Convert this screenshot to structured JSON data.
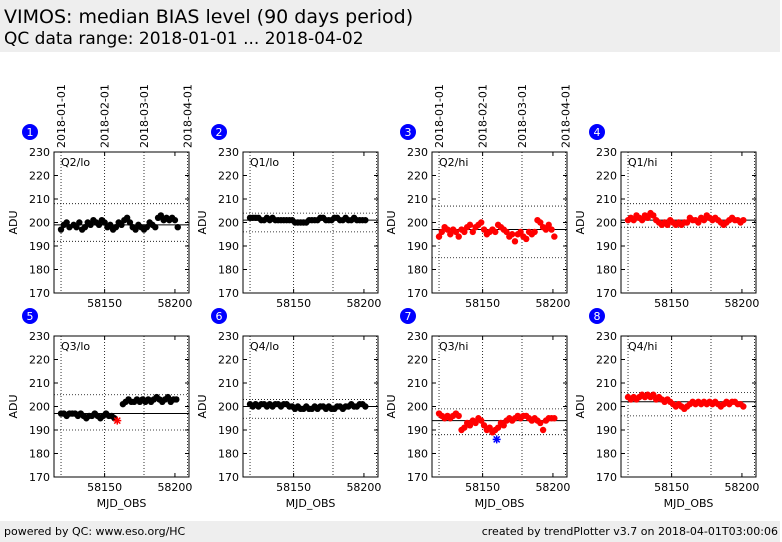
{
  "header": {
    "title": "VIMOS: median BIAS level (90 days period)",
    "subtitle": "QC data range: 2018-01-01 ... 2018-04-02"
  },
  "footer": {
    "left": "powered by QC: www.eso.org/HC",
    "right": "created by trendPlotter v3.7 on 2018-04-01T03:00:06"
  },
  "colors": {
    "black_series": "#000000",
    "red_series": "#ff0000",
    "outlier": "#0000ff",
    "badge": "#0000ff"
  },
  "axis_common": {
    "xlabel": "MJD_OBS",
    "ylabel": "ADU",
    "xlim": [
      58114,
      58210
    ],
    "ylim": [
      170,
      230
    ],
    "xticks": [
      58150,
      58200
    ],
    "yticks": [
      170,
      180,
      190,
      200,
      210,
      220,
      230
    ],
    "date_labels": [
      "2018-01-01",
      "2018-02-01",
      "2018-03-01",
      "2018-04-01"
    ],
    "date_mjd": [
      58119,
      58150,
      58178,
      58209
    ]
  },
  "chart_data": [
    {
      "type": "scatter",
      "badge": "1",
      "label": "Q2/lo",
      "color": "black",
      "median": 199,
      "limits": [
        192,
        208
      ],
      "show_dates": true,
      "x": [
        58119,
        58121,
        58123,
        58125,
        58128,
        58130,
        58132,
        58134,
        58136,
        58138,
        58140,
        58142,
        58144,
        58146,
        58148,
        58150,
        58152,
        58154,
        58156,
        58158,
        58160,
        58162,
        58164,
        58166,
        58168,
        58170,
        58172,
        58174,
        58176,
        58178,
        58180,
        58182,
        58184,
        58186,
        58188,
        58190,
        58192,
        58194,
        58196,
        58198,
        58200,
        58202
      ],
      "y": [
        197,
        199,
        200,
        198,
        199,
        198,
        200,
        197,
        198,
        200,
        199,
        201,
        200,
        199,
        201,
        200,
        198,
        199,
        197,
        198,
        200,
        199,
        201,
        202,
        200,
        198,
        197,
        199,
        198,
        197,
        198,
        200,
        199,
        198,
        202,
        203,
        201,
        202,
        201,
        202,
        201,
        198
      ]
    },
    {
      "type": "scatter",
      "badge": "2",
      "label": "Q1/lo",
      "color": "black",
      "median": 201,
      "limits": [
        196,
        204
      ],
      "show_dates": false,
      "x": [
        58119,
        58121,
        58123,
        58125,
        58127,
        58129,
        58131,
        58133,
        58135,
        58137,
        58139,
        58141,
        58143,
        58145,
        58147,
        58149,
        58151,
        58153,
        58155,
        58157,
        58159,
        58161,
        58163,
        58165,
        58167,
        58169,
        58171,
        58173,
        58175,
        58177,
        58179,
        58181,
        58183,
        58185,
        58187,
        58189,
        58191,
        58193,
        58195,
        58197,
        58199,
        58201
      ],
      "y": [
        202,
        202,
        202,
        202,
        201,
        201,
        202,
        201,
        202,
        201,
        201,
        201,
        201,
        201,
        201,
        201,
        200,
        200,
        200,
        200,
        200,
        201,
        201,
        201,
        201,
        202,
        202,
        201,
        201,
        201,
        202,
        202,
        201,
        201,
        202,
        201,
        201,
        202,
        201,
        201,
        201,
        201
      ]
    },
    {
      "type": "scatter",
      "badge": "3",
      "label": "Q2/hi",
      "color": "red",
      "median": 197,
      "limits": [
        185,
        207
      ],
      "show_dates": true,
      "x": [
        58119,
        58121,
        58123,
        58125,
        58127,
        58129,
        58131,
        58133,
        58135,
        58137,
        58139,
        58141,
        58143,
        58145,
        58147,
        58149,
        58151,
        58153,
        58155,
        58157,
        58159,
        58161,
        58163,
        58165,
        58167,
        58169,
        58171,
        58173,
        58175,
        58177,
        58179,
        58181,
        58183,
        58185,
        58187,
        58189,
        58191,
        58193,
        58195,
        58197,
        58199,
        58201
      ],
      "y": [
        194,
        196,
        198,
        197,
        195,
        197,
        196,
        194,
        197,
        196,
        198,
        199,
        196,
        198,
        199,
        200,
        197,
        195,
        196,
        197,
        196,
        199,
        198,
        197,
        196,
        194,
        195,
        192,
        195,
        196,
        194,
        193,
        196,
        195,
        196,
        201,
        200,
        198,
        197,
        199,
        197,
        194
      ]
    },
    {
      "type": "scatter",
      "badge": "4",
      "label": "Q1/hi",
      "color": "red",
      "median": 201,
      "limits": [
        198,
        208
      ],
      "show_dates": false,
      "x": [
        58119,
        58121,
        58123,
        58125,
        58127,
        58129,
        58131,
        58133,
        58135,
        58137,
        58139,
        58141,
        58143,
        58145,
        58147,
        58149,
        58151,
        58153,
        58155,
        58157,
        58159,
        58161,
        58163,
        58165,
        58167,
        58169,
        58171,
        58173,
        58175,
        58177,
        58179,
        58181,
        58183,
        58185,
        58187,
        58189,
        58191,
        58193,
        58195,
        58197,
        58199,
        58201
      ],
      "y": [
        201,
        202,
        201,
        203,
        202,
        201,
        203,
        202,
        204,
        203,
        201,
        200,
        199,
        200,
        199,
        201,
        200,
        199,
        200,
        199,
        200,
        200,
        202,
        201,
        201,
        200,
        202,
        201,
        203,
        202,
        201,
        202,
        201,
        200,
        199,
        200,
        201,
        202,
        201,
        201,
        200,
        201
      ]
    },
    {
      "type": "scatter",
      "badge": "5",
      "label": "Q3/lo",
      "color": "black",
      "median": 197,
      "limits": [
        190,
        205
      ],
      "show_dates": false,
      "x": [
        58119,
        58121,
        58123,
        58125,
        58127,
        58129,
        58131,
        58133,
        58135,
        58137,
        58139,
        58141,
        58143,
        58145,
        58147,
        58149,
        58151,
        58153,
        58155,
        58157,
        58163,
        58165,
        58167,
        58169,
        58171,
        58173,
        58175,
        58177,
        58179,
        58181,
        58183,
        58185,
        58187,
        58189,
        58191,
        58193,
        58195,
        58197,
        58199,
        58201
      ],
      "y": [
        197,
        197,
        196,
        197,
        197,
        197,
        196,
        197,
        196,
        195,
        196,
        196,
        197,
        196,
        195,
        196,
        197,
        196,
        196,
        195,
        201,
        202,
        203,
        202,
        202,
        203,
        202,
        203,
        202,
        203,
        202,
        203,
        204,
        203,
        202,
        203,
        204,
        202,
        203,
        203
      ]
    },
    {
      "type": "scatter",
      "badge": "6",
      "label": "Q4/lo",
      "color": "black",
      "median": 200,
      "limits": [
        195,
        203
      ],
      "show_dates": false,
      "x": [
        58119,
        58121,
        58123,
        58125,
        58127,
        58129,
        58131,
        58133,
        58135,
        58137,
        58139,
        58141,
        58143,
        58145,
        58147,
        58149,
        58151,
        58153,
        58155,
        58157,
        58159,
        58161,
        58163,
        58165,
        58167,
        58169,
        58171,
        58173,
        58175,
        58177,
        58179,
        58181,
        58183,
        58185,
        58187,
        58189,
        58191,
        58193,
        58195,
        58197,
        58199,
        58201
      ],
      "y": [
        201,
        200,
        201,
        200,
        201,
        201,
        200,
        201,
        200,
        201,
        201,
        200,
        201,
        201,
        200,
        200,
        199,
        200,
        199,
        199,
        200,
        199,
        199,
        200,
        199,
        200,
        200,
        199,
        200,
        199,
        199,
        200,
        200,
        199,
        200,
        200,
        201,
        200,
        200,
        201,
        201,
        200
      ]
    },
    {
      "type": "scatter",
      "badge": "7",
      "label": "Q3/hi",
      "color": "red",
      "median": 194,
      "limits": [
        188,
        199
      ],
      "show_dates": false,
      "x": [
        58119,
        58121,
        58123,
        58125,
        58127,
        58129,
        58131,
        58133,
        58135,
        58137,
        58139,
        58141,
        58143,
        58145,
        58147,
        58149,
        58151,
        58153,
        58155,
        58157,
        58159,
        58161,
        58163,
        58165,
        58167,
        58169,
        58171,
        58173,
        58175,
        58177,
        58179,
        58181,
        58183,
        58185,
        58187,
        58189,
        58191,
        58193,
        58195,
        58197,
        58199,
        58201
      ],
      "y": [
        197,
        196,
        195,
        196,
        195,
        196,
        197,
        196,
        190,
        191,
        193,
        192,
        194,
        193,
        195,
        194,
        192,
        190,
        191,
        189,
        190,
        191,
        193,
        192,
        194,
        195,
        194,
        195,
        196,
        195,
        196,
        196,
        195,
        194,
        195,
        194,
        193,
        190,
        194,
        195,
        195,
        195
      ]
    },
    {
      "type": "scatter",
      "badge": "8",
      "label": "Q4/hi",
      "color": "red",
      "median": 202,
      "limits": [
        196,
        206
      ],
      "show_dates": false,
      "x": [
        58119,
        58121,
        58123,
        58125,
        58127,
        58129,
        58131,
        58133,
        58135,
        58137,
        58139,
        58141,
        58143,
        58145,
        58147,
        58149,
        58151,
        58153,
        58155,
        58157,
        58159,
        58161,
        58163,
        58165,
        58167,
        58169,
        58171,
        58173,
        58175,
        58177,
        58179,
        58181,
        58183,
        58185,
        58187,
        58189,
        58191,
        58193,
        58195,
        58197,
        58199,
        58201
      ],
      "y": [
        204,
        203,
        204,
        203,
        204,
        205,
        204,
        205,
        204,
        205,
        203,
        204,
        203,
        202,
        203,
        202,
        201,
        200,
        201,
        200,
        199,
        200,
        201,
        202,
        201,
        202,
        201,
        202,
        201,
        202,
        201,
        202,
        201,
        200,
        201,
        202,
        201,
        202,
        202,
        201,
        201,
        200
      ]
    }
  ],
  "outliers": [
    {
      "panel": 5,
      "x": 58159,
      "y": 194,
      "color": "red"
    },
    {
      "panel": 7,
      "x": 58160,
      "y": 186,
      "color": "blue"
    }
  ]
}
